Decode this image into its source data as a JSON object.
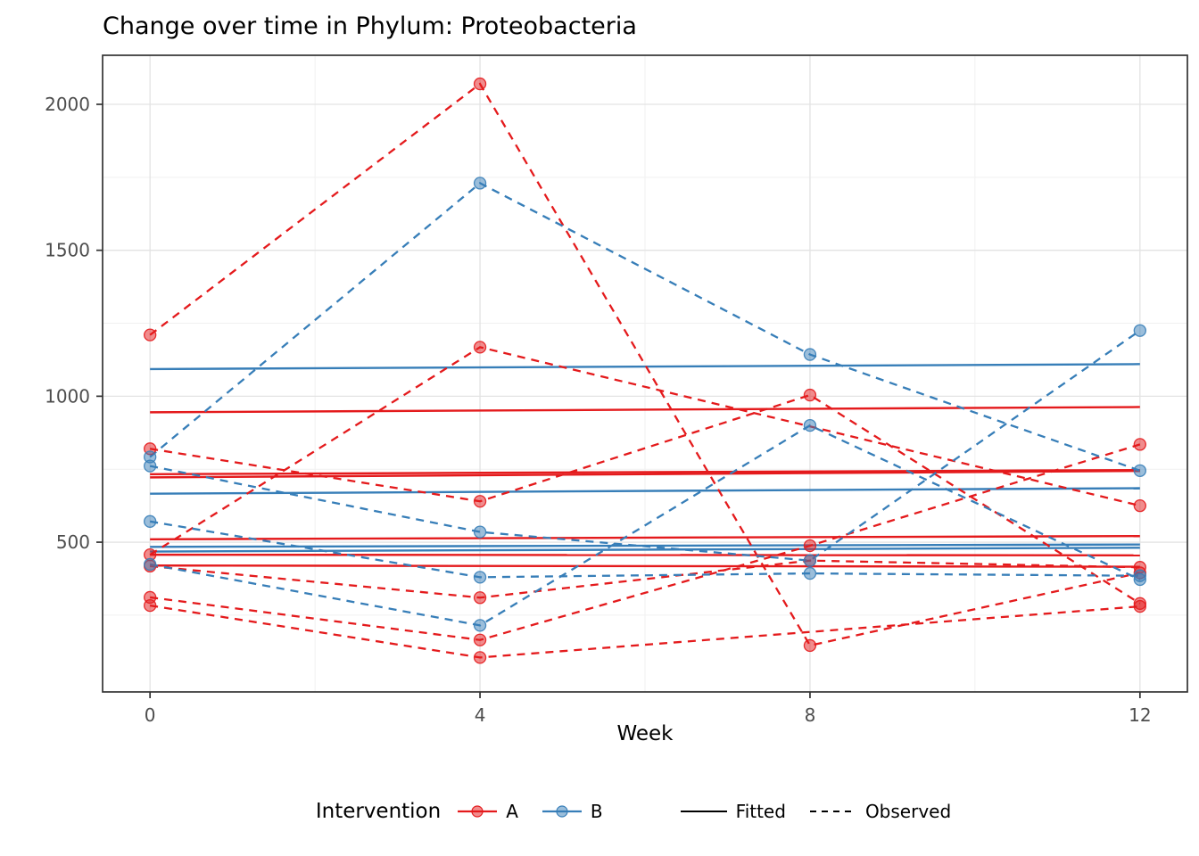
{
  "title": "Change over time in Phylum: Proteobacteria",
  "x_axis_title": "Week",
  "legend": {
    "title": "Intervention",
    "groups": [
      {
        "label": "A",
        "color": "#E41A1C"
      },
      {
        "label": "B",
        "color": "#377EB8"
      }
    ],
    "linetypes": [
      {
        "label": "Fitted",
        "style": "solid"
      },
      {
        "label": "Observed",
        "style": "dashed"
      }
    ]
  },
  "colors": {
    "A": "#E41A1C",
    "B": "#377EB8",
    "grid_major": "#E3E3E3",
    "grid_minor": "#F1F1F1",
    "panel_border": "#333333",
    "tick_mark": "#333333",
    "tick_text": "#4D4D4D",
    "legend_key_line": "#000000"
  },
  "chart_data": {
    "type": "line",
    "title": "Change over time in Phylum: Proteobacteria",
    "xlabel": "Week",
    "ylabel": "",
    "weeks": [
      0,
      4,
      8,
      12
    ],
    "x_ticks": [
      "0",
      "4",
      "8",
      "12"
    ],
    "x_tick_values": [
      0,
      4,
      8,
      12
    ],
    "x_minor": [
      2,
      6,
      10
    ],
    "y_ticks": [
      "500",
      "1000",
      "1500",
      "2000"
    ],
    "y_tick_values": [
      500,
      1000,
      1500,
      2000
    ],
    "y_minor": [
      250,
      750,
      1250,
      1750
    ],
    "xlim": [
      -0.575,
      12.575
    ],
    "ylim": [
      -13,
      2168
    ],
    "legend_position": "bottom",
    "grid": true,
    "observed": [
      {
        "id": "A1",
        "group": "A",
        "values": [
          1210,
          2070,
          146,
          395
        ]
      },
      {
        "id": "A2",
        "group": "A",
        "values": [
          820,
          640,
          1004,
          290
        ]
      },
      {
        "id": "A3",
        "group": "A",
        "values": [
          457,
          1168,
          null,
          625
        ]
      },
      {
        "id": "A4",
        "group": "A",
        "values": [
          418,
          310,
          437,
          414
        ]
      },
      {
        "id": "A5",
        "group": "A",
        "values": [
          311,
          165,
          488,
          835
        ]
      },
      {
        "id": "A6",
        "group": "A",
        "values": [
          283,
          105,
          null,
          280
        ]
      },
      {
        "id": "B1",
        "group": "B",
        "values": [
          792,
          1730,
          1143,
          745
        ]
      },
      {
        "id": "B2",
        "group": "B",
        "values": [
          761,
          535,
          437,
          1225
        ]
      },
      {
        "id": "B3",
        "group": "B",
        "values": [
          571,
          380,
          393,
          385
        ]
      },
      {
        "id": "B4",
        "group": "B",
        "values": [
          424,
          215,
          900,
          372
        ]
      }
    ],
    "fitted": [
      {
        "group": "A",
        "start": 945,
        "end": 963
      },
      {
        "group": "A",
        "start": 722,
        "end": 744
      },
      {
        "group": "A",
        "start": 733,
        "end": 747
      },
      {
        "group": "A",
        "start": 510,
        "end": 521
      },
      {
        "group": "A",
        "start": 457,
        "end": 455
      },
      {
        "group": "A",
        "start": 420,
        "end": 416
      },
      {
        "group": "B",
        "start": 1093,
        "end": 1110
      },
      {
        "group": "B",
        "start": 666,
        "end": 685
      },
      {
        "group": "B",
        "start": 484,
        "end": 492
      },
      {
        "group": "B",
        "start": 468,
        "end": 481
      }
    ]
  }
}
